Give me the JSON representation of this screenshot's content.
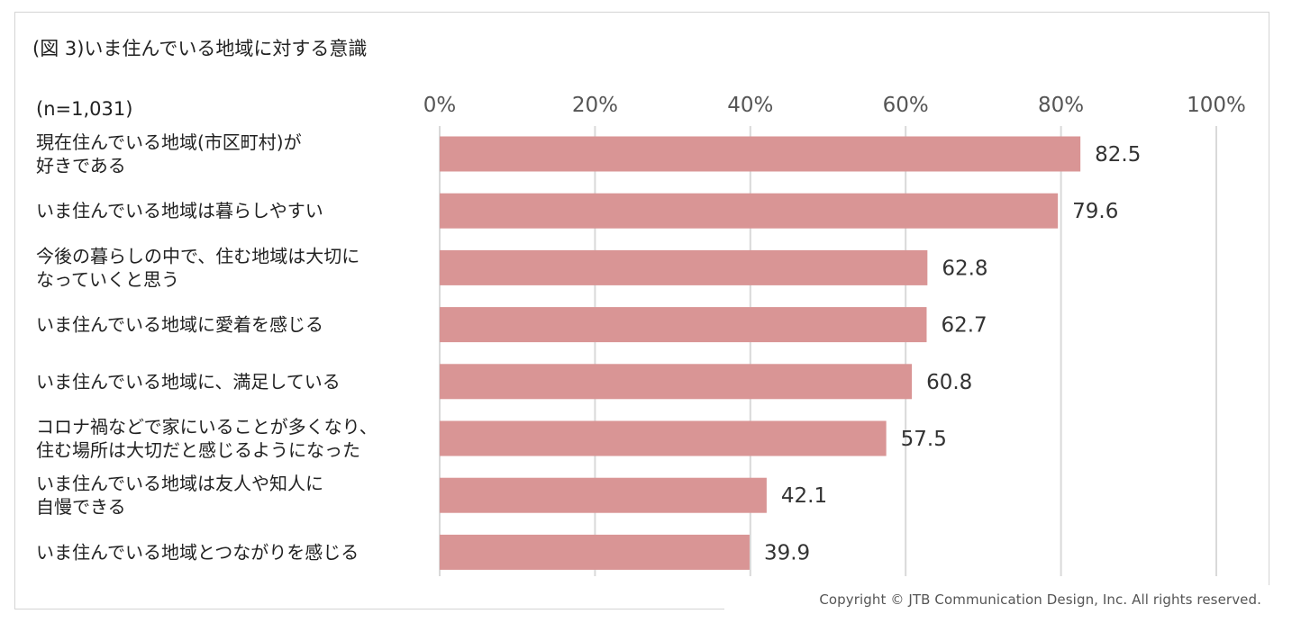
{
  "title": "(図 3)いま住んでいる地域に対する意識",
  "sample_size": "(n=1,031)",
  "copyright": "Copyright © JTB Communication Design, Inc. All rights reserved.",
  "colors": {
    "bar": "#d99595",
    "grid": "#d9d9d9",
    "text": "#222222",
    "tick_text": "#555555"
  },
  "chart_data": {
    "type": "bar",
    "orientation": "horizontal",
    "xlim": [
      0,
      100
    ],
    "ticks": [
      0,
      20,
      40,
      60,
      80,
      100
    ],
    "tick_labels": [
      "0%",
      "20%",
      "40%",
      "60%",
      "80%",
      "100%"
    ],
    "tick_position": "top",
    "grid": true,
    "categories": [
      [
        "現在住んでいる地域(市区町村)が",
        "好きである"
      ],
      [
        "いま住んでいる地域は暮らしやすい"
      ],
      [
        "今後の暮らしの中で、住む地域は大切に",
        "なっていくと思う"
      ],
      [
        "いま住んでいる地域に愛着を感じる"
      ],
      [
        "いま住んでいる地域に、満足している"
      ],
      [
        "コロナ禍などで家にいることが多くなり、",
        "住む場所は大切だと感じるようになった"
      ],
      [
        "いま住んでいる地域は友人や知人に",
        "自慢できる"
      ],
      [
        "いま住んでいる地域とつながりを感じる"
      ]
    ],
    "values": [
      82.5,
      79.6,
      62.8,
      62.7,
      60.8,
      57.5,
      42.1,
      39.9
    ],
    "value_labels": [
      "82.5",
      "79.6",
      "62.8",
      "62.7",
      "60.8",
      "57.5",
      "42.1",
      "39.9"
    ]
  }
}
